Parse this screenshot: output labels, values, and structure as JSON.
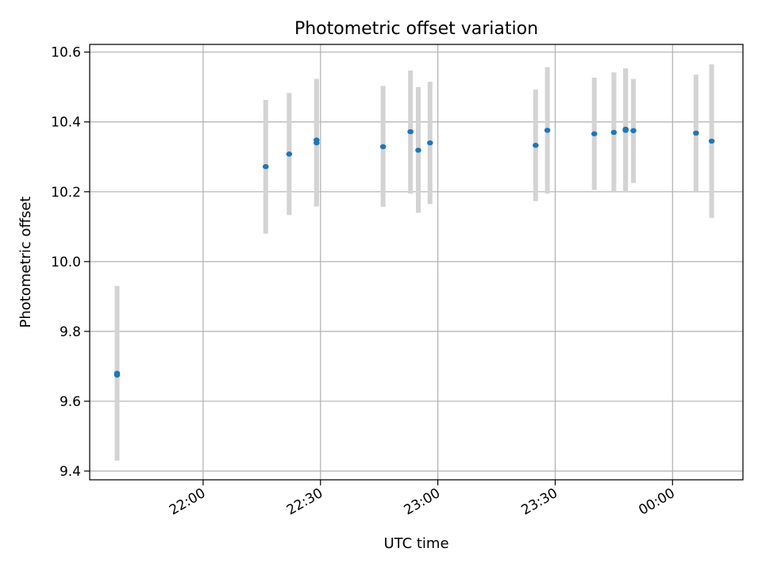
{
  "chart_data": {
    "type": "scatter",
    "title": "Photometric offset variation",
    "xlabel": "UTC time",
    "ylabel": "Photometric offset",
    "grid": true,
    "x_is_time": true,
    "xlim": [
      "21:31",
      "00:18"
    ],
    "ylim": [
      9.375,
      10.622
    ],
    "yticks": [
      9.4,
      9.6,
      9.8,
      10.0,
      10.2,
      10.4,
      10.6
    ],
    "ytick_labels": [
      "9.4",
      "9.6",
      "9.8",
      "10.0",
      "10.2",
      "10.4",
      "10.6"
    ],
    "xticks": [
      "22:00",
      "22:30",
      "23:00",
      "23:30",
      "00:00"
    ],
    "xtick_labels": [
      "22:00",
      "22:30",
      "23:00",
      "23:30",
      "00:00"
    ],
    "series": [
      {
        "marker_color": "#1f77b4",
        "errorbar_color": "#d3d3d3",
        "points": [
          {
            "x": "21:38",
            "y": 9.675,
            "ylow": 9.435,
            "yhigh": 9.915
          },
          {
            "x": "21:38",
            "y": 9.68,
            "ylow": 9.43,
            "yhigh": 9.93
          },
          {
            "x": "22:16",
            "y": 10.272,
            "ylow": 10.08,
            "yhigh": 10.463
          },
          {
            "x": "22:22",
            "y": 10.308,
            "ylow": 10.133,
            "yhigh": 10.483
          },
          {
            "x": "22:29",
            "y": 10.348,
            "ylow": 10.158,
            "yhigh": 10.523
          },
          {
            "x": "22:29",
            "y": 10.34,
            "ylow": 10.158,
            "yhigh": 10.523
          },
          {
            "x": "22:46",
            "y": 10.329,
            "ylow": 10.157,
            "yhigh": 10.503
          },
          {
            "x": "22:53",
            "y": 10.372,
            "ylow": 10.195,
            "yhigh": 10.547
          },
          {
            "x": "22:55",
            "y": 10.319,
            "ylow": 10.14,
            "yhigh": 10.5
          },
          {
            "x": "22:58",
            "y": 10.34,
            "ylow": 10.165,
            "yhigh": 10.515
          },
          {
            "x": "23:25",
            "y": 10.333,
            "ylow": 10.173,
            "yhigh": 10.493
          },
          {
            "x": "23:28",
            "y": 10.376,
            "ylow": 10.195,
            "yhigh": 10.557
          },
          {
            "x": "23:40",
            "y": 10.366,
            "ylow": 10.205,
            "yhigh": 10.527
          },
          {
            "x": "23:45",
            "y": 10.37,
            "ylow": 10.2,
            "yhigh": 10.542
          },
          {
            "x": "23:48",
            "y": 10.376,
            "ylow": 10.2,
            "yhigh": 10.553
          },
          {
            "x": "23:48",
            "y": 10.379,
            "ylow": 10.2,
            "yhigh": 10.553
          },
          {
            "x": "23:50",
            "y": 10.375,
            "ylow": 10.225,
            "yhigh": 10.523
          },
          {
            "x": "00:06",
            "y": 10.368,
            "ylow": 10.2,
            "yhigh": 10.535
          },
          {
            "x": "00:10",
            "y": 10.345,
            "ylow": 10.125,
            "yhigh": 10.565
          }
        ]
      }
    ]
  }
}
